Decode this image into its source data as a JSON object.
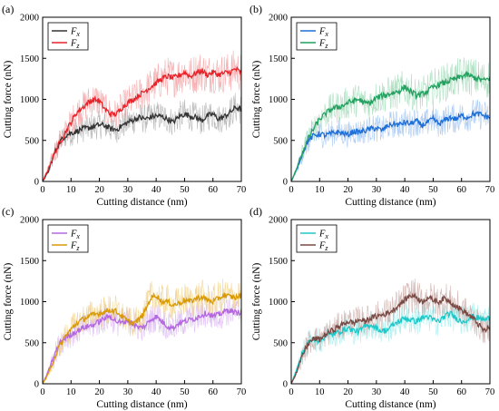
{
  "chart_data": [
    {
      "type": "line",
      "panel_label": "(a)",
      "xlabel": "Cutting distance (nm)",
      "ylabel": "Cutting force (nN)",
      "xlim": [
        0,
        70
      ],
      "ylim": [
        0,
        2000
      ],
      "xticks": [
        0,
        10,
        20,
        30,
        40,
        50,
        60,
        70
      ],
      "yticks": [
        0,
        500,
        1000,
        1500,
        2000
      ],
      "legend_position": "top-left",
      "series": [
        {
          "name": "Fx",
          "color": "#333333",
          "raw_color": "#aaaaaa",
          "x": [
            0,
            2,
            4,
            6,
            8,
            10,
            12,
            14,
            16,
            18,
            20,
            22,
            24,
            26,
            28,
            30,
            32,
            34,
            36,
            38,
            40,
            42,
            44,
            46,
            48,
            50,
            52,
            54,
            56,
            58,
            60,
            62,
            64,
            66,
            68,
            70
          ],
          "y": [
            0,
            120,
            330,
            480,
            560,
            590,
            610,
            640,
            650,
            670,
            690,
            680,
            640,
            630,
            680,
            720,
            750,
            780,
            760,
            780,
            800,
            790,
            760,
            720,
            790,
            820,
            800,
            780,
            740,
            800,
            820,
            760,
            790,
            840,
            900,
            880
          ]
        },
        {
          "name": "Fz",
          "color": "#e8242b",
          "raw_color": "#f2a0a2",
          "x": [
            0,
            2,
            4,
            6,
            8,
            10,
            12,
            14,
            16,
            18,
            20,
            22,
            24,
            26,
            28,
            30,
            32,
            34,
            36,
            38,
            40,
            42,
            44,
            46,
            48,
            50,
            52,
            54,
            56,
            58,
            60,
            62,
            64,
            66,
            68,
            70
          ],
          "y": [
            0,
            150,
            330,
            470,
            600,
            720,
            840,
            900,
            960,
            1000,
            980,
            880,
            820,
            820,
            900,
            960,
            1000,
            1050,
            1100,
            1150,
            1200,
            1250,
            1280,
            1260,
            1290,
            1330,
            1280,
            1320,
            1350,
            1300,
            1330,
            1300,
            1320,
            1330,
            1370,
            1320
          ]
        }
      ]
    },
    {
      "type": "line",
      "panel_label": "(b)",
      "xlabel": "Cutting distance (nm)",
      "ylabel": "Cutting force (nN)",
      "xlim": [
        0,
        70
      ],
      "ylim": [
        0,
        2000
      ],
      "xticks": [
        0,
        10,
        20,
        30,
        40,
        50,
        60,
        70
      ],
      "yticks": [
        0,
        500,
        1000,
        1500,
        2000
      ],
      "legend_position": "top-left",
      "series": [
        {
          "name": "Fx",
          "color": "#1f6fd8",
          "raw_color": "#9ec2f0",
          "x": [
            0,
            2,
            4,
            6,
            8,
            10,
            12,
            14,
            16,
            18,
            20,
            22,
            24,
            26,
            28,
            30,
            32,
            34,
            36,
            38,
            40,
            42,
            44,
            46,
            48,
            50,
            52,
            54,
            56,
            58,
            60,
            62,
            64,
            66,
            68,
            70
          ],
          "y": [
            0,
            150,
            350,
            500,
            560,
            580,
            560,
            580,
            600,
            590,
            570,
            610,
            600,
            620,
            640,
            650,
            620,
            680,
            700,
            690,
            720,
            700,
            740,
            680,
            720,
            760,
            700,
            740,
            780,
            760,
            800,
            780,
            820,
            820,
            800,
            780
          ]
        },
        {
          "name": "Fz",
          "color": "#24a060",
          "raw_color": "#9fd9b6",
          "x": [
            0,
            2,
            4,
            6,
            8,
            10,
            12,
            14,
            16,
            18,
            20,
            22,
            24,
            26,
            28,
            30,
            32,
            34,
            36,
            38,
            40,
            42,
            44,
            46,
            48,
            50,
            52,
            54,
            56,
            58,
            60,
            62,
            64,
            66,
            68,
            70
          ],
          "y": [
            0,
            160,
            360,
            520,
            650,
            760,
            820,
            880,
            900,
            920,
            960,
            980,
            1000,
            950,
            960,
            1020,
            1040,
            1060,
            1080,
            1100,
            1150,
            1100,
            1050,
            1060,
            1100,
            1150,
            1180,
            1200,
            1230,
            1250,
            1280,
            1300,
            1270,
            1250,
            1230,
            1260
          ]
        }
      ]
    },
    {
      "type": "line",
      "panel_label": "(c)",
      "xlabel": "Cutting distance (nm)",
      "ylabel": "Cutting force (nN)",
      "xlim": [
        0,
        70
      ],
      "ylim": [
        0,
        2000
      ],
      "xticks": [
        0,
        10,
        20,
        30,
        40,
        50,
        60,
        70
      ],
      "yticks": [
        0,
        500,
        1000,
        1500,
        2000
      ],
      "legend_position": "top-left",
      "series": [
        {
          "name": "Fx",
          "color": "#b468e0",
          "raw_color": "#dcb8f2",
          "x": [
            0,
            2,
            4,
            6,
            8,
            10,
            12,
            14,
            16,
            18,
            20,
            22,
            24,
            26,
            28,
            30,
            32,
            34,
            36,
            38,
            40,
            42,
            44,
            46,
            48,
            50,
            52,
            54,
            56,
            58,
            60,
            62,
            64,
            66,
            68,
            70
          ],
          "y": [
            0,
            150,
            340,
            490,
            560,
            600,
            640,
            680,
            700,
            720,
            760,
            800,
            820,
            760,
            740,
            780,
            720,
            680,
            700,
            780,
            820,
            760,
            700,
            680,
            740,
            760,
            780,
            800,
            840,
            860,
            820,
            840,
            880,
            900,
            860,
            880
          ]
        },
        {
          "name": "Fz",
          "color": "#d99a06",
          "raw_color": "#f0d08a",
          "x": [
            0,
            2,
            4,
            6,
            8,
            10,
            12,
            14,
            16,
            18,
            20,
            22,
            24,
            26,
            28,
            30,
            32,
            34,
            36,
            38,
            40,
            42,
            44,
            46,
            48,
            50,
            52,
            54,
            56,
            58,
            60,
            62,
            64,
            66,
            68,
            70
          ],
          "y": [
            0,
            120,
            300,
            460,
            580,
            660,
            740,
            780,
            820,
            840,
            860,
            880,
            900,
            880,
            820,
            760,
            740,
            780,
            880,
            1040,
            1080,
            1000,
            1000,
            960,
            980,
            1020,
            1000,
            1040,
            1060,
            1020,
            1000,
            1040,
            1080,
            1060,
            1050,
            1080
          ]
        }
      ]
    },
    {
      "type": "line",
      "panel_label": "(d)",
      "xlabel": "Cutting distance (nm)",
      "ylabel": "Cutting force (nN)",
      "xlim": [
        0,
        70
      ],
      "ylim": [
        0,
        2000
      ],
      "xticks": [
        0,
        10,
        20,
        30,
        40,
        50,
        60,
        70
      ],
      "yticks": [
        0,
        500,
        1000,
        1500,
        2000
      ],
      "legend_position": "top-left",
      "series": [
        {
          "name": "Fx",
          "color": "#1ec8c8",
          "raw_color": "#a4ecec",
          "x": [
            0,
            2,
            4,
            6,
            8,
            10,
            12,
            14,
            16,
            18,
            20,
            22,
            24,
            26,
            28,
            30,
            32,
            34,
            36,
            38,
            40,
            42,
            44,
            46,
            48,
            50,
            52,
            54,
            56,
            58,
            60,
            62,
            64,
            66,
            68,
            70
          ],
          "y": [
            0,
            180,
            380,
            500,
            560,
            520,
            580,
            600,
            620,
            650,
            680,
            650,
            640,
            700,
            720,
            680,
            640,
            660,
            720,
            760,
            800,
            780,
            760,
            800,
            820,
            780,
            760,
            820,
            860,
            800,
            760,
            780,
            820,
            800,
            780,
            800
          ]
        },
        {
          "name": "Fz",
          "color": "#7a4a44",
          "raw_color": "#c9aba8",
          "x": [
            0,
            2,
            4,
            6,
            8,
            10,
            12,
            14,
            16,
            18,
            20,
            22,
            24,
            26,
            28,
            30,
            32,
            34,
            36,
            38,
            40,
            42,
            44,
            46,
            48,
            50,
            52,
            54,
            56,
            58,
            60,
            62,
            64,
            66,
            68,
            70
          ],
          "y": [
            0,
            150,
            350,
            490,
            550,
            540,
            600,
            640,
            680,
            720,
            760,
            740,
            780,
            760,
            800,
            820,
            840,
            860,
            900,
            960,
            1020,
            1080,
            1060,
            1000,
            1050,
            1020,
            1000,
            1040,
            1000,
            950,
            900,
            850,
            800,
            720,
            640,
            700
          ]
        }
      ]
    }
  ]
}
